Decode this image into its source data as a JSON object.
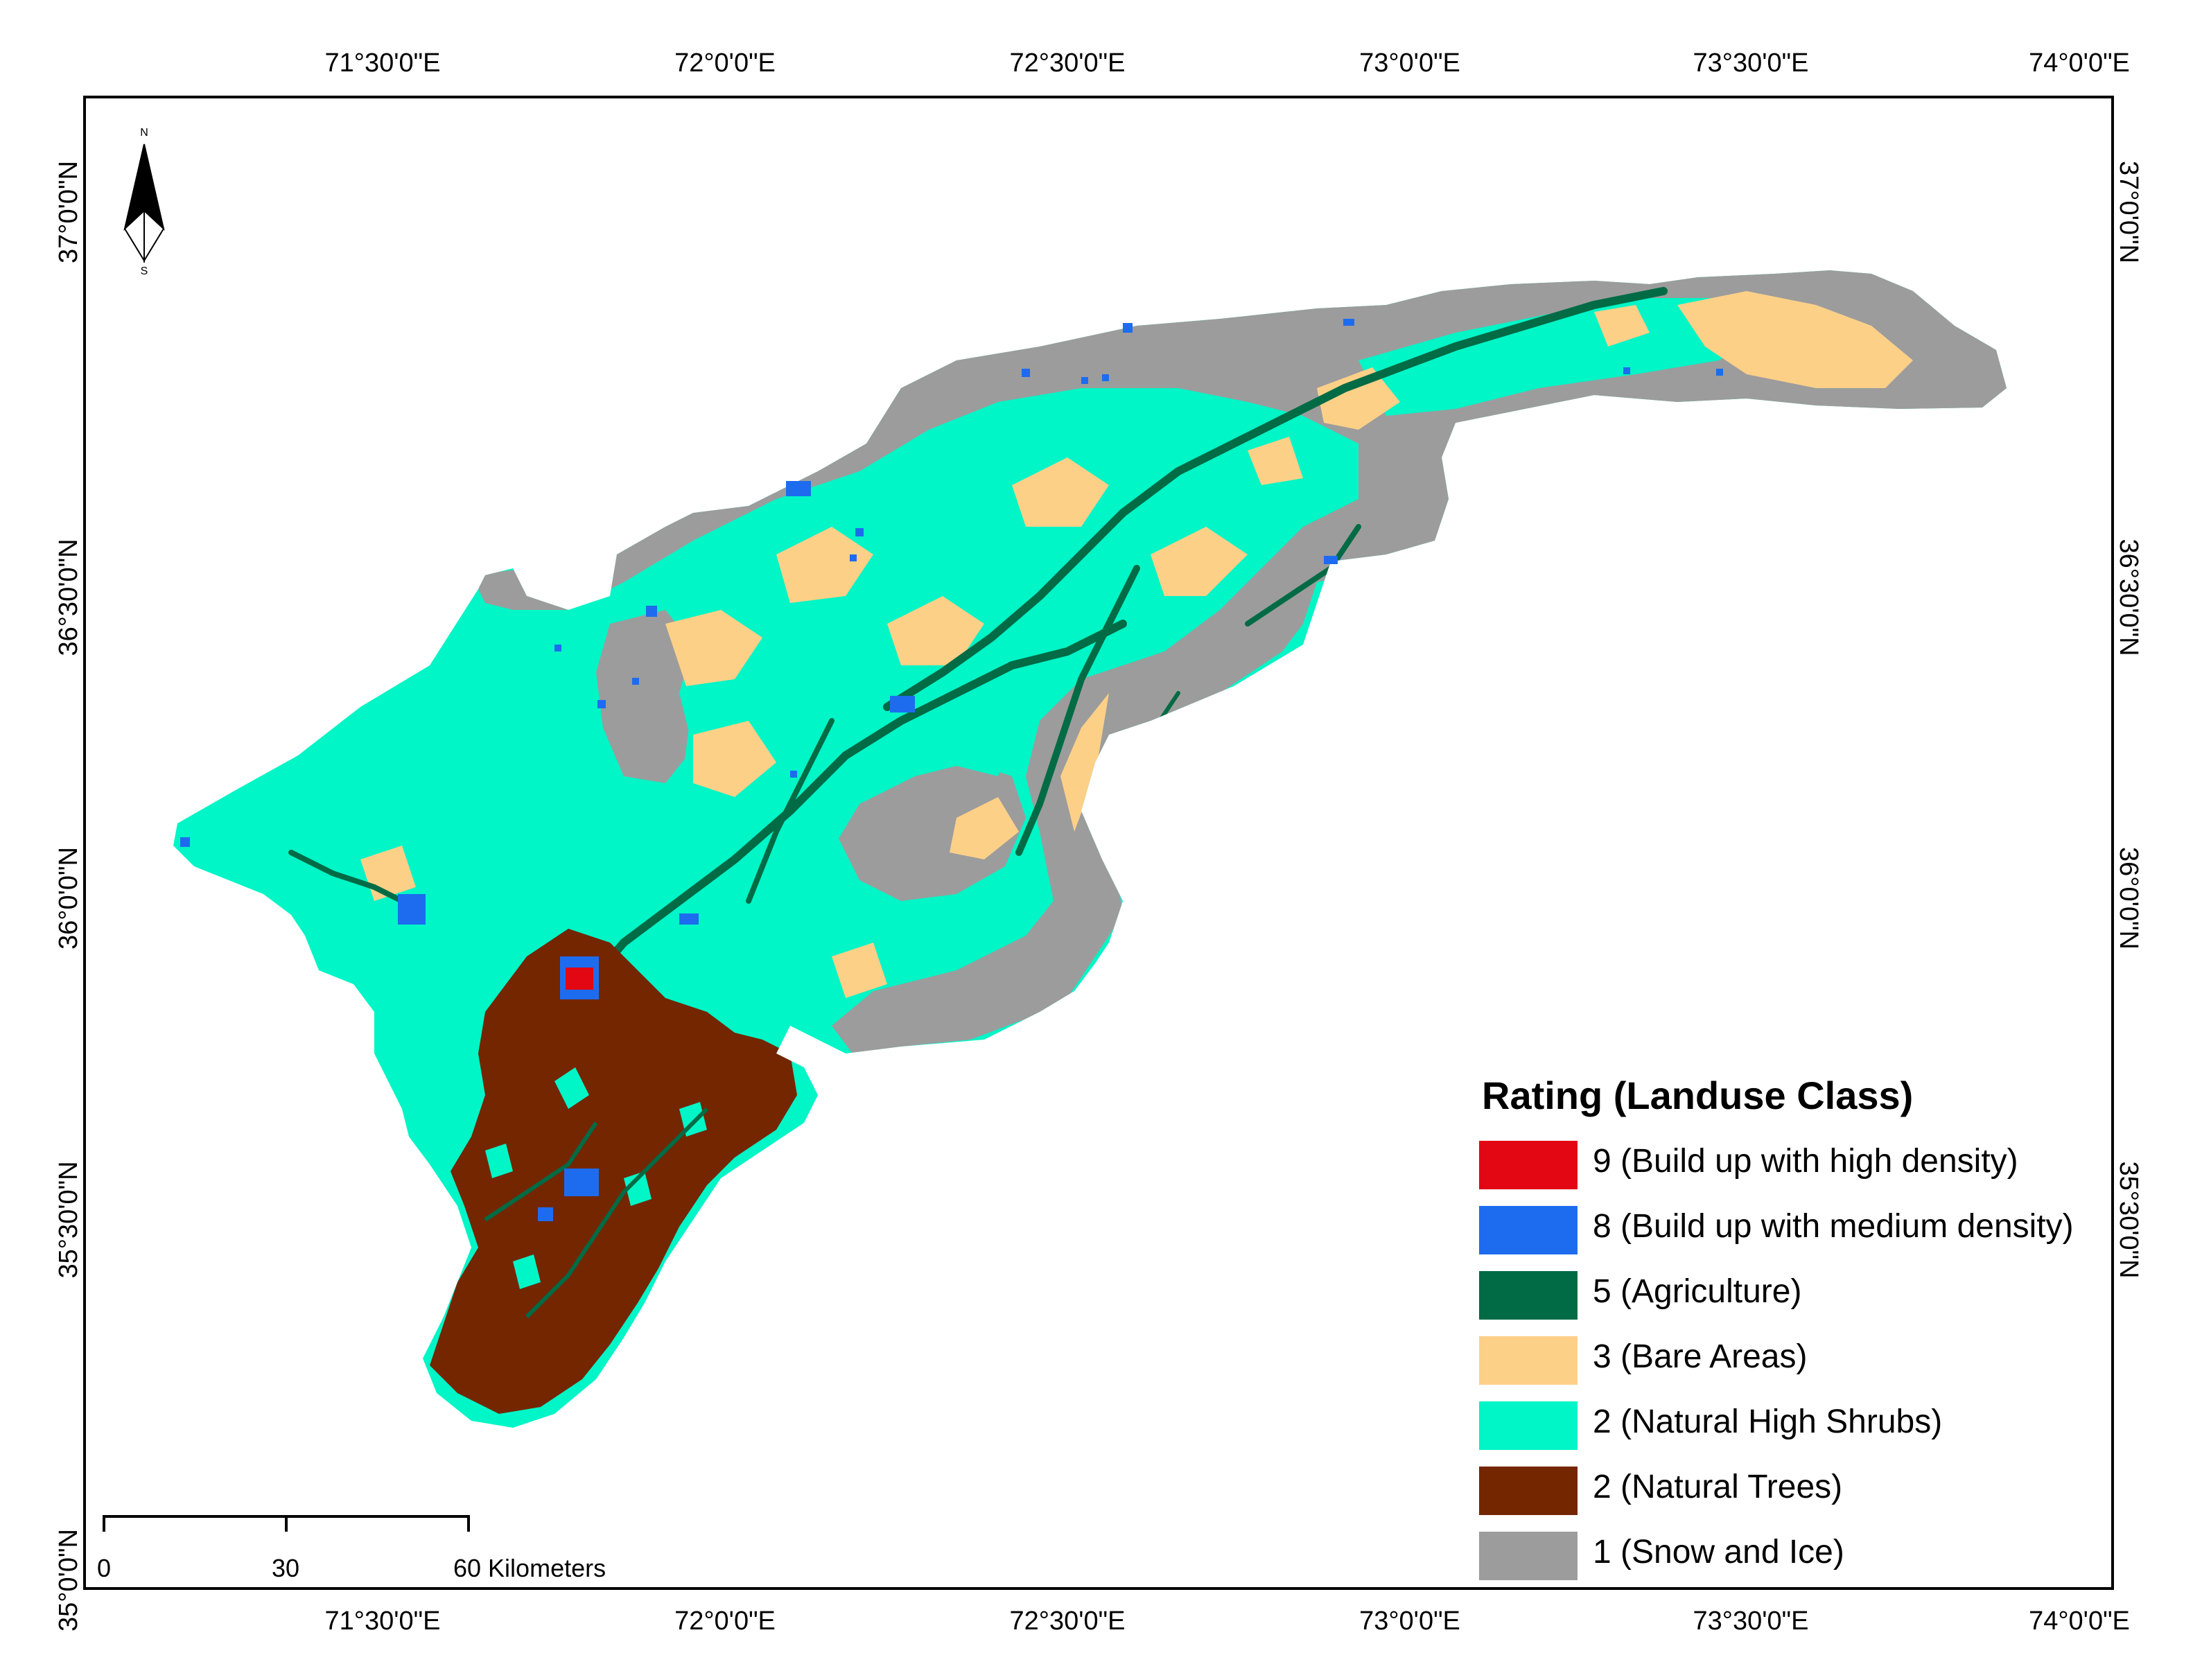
{
  "map": {
    "colors": {
      "builtup_high": "#e30613",
      "builtup_medium": "#1d6cf0",
      "agriculture": "#006b45",
      "bare": "#fdd088",
      "shrubs": "#00f5c7",
      "trees": "#732600",
      "snow": "#9c9c9c"
    }
  },
  "axes": {
    "top": [
      "71°30'0\"E",
      "72°0'0\"E",
      "72°30'0\"E",
      "73°0'0\"E",
      "73°30'0\"E",
      "74°0'0\"E"
    ],
    "bottom": [
      "71°30'0\"E",
      "72°0'0\"E",
      "72°30'0\"E",
      "73°0'0\"E",
      "73°30'0\"E",
      "74°0'0\"E"
    ],
    "left": [
      "37°0'0\"N",
      "36°30'0\"N",
      "36°0'0\"N",
      "35°30'0\"N",
      "35°0'0\"N"
    ],
    "right": [
      "37°0'0\"N",
      "36°30'0\"N",
      "36°0'0\"N",
      "35°30'0\"N"
    ]
  },
  "north_arrow": {
    "n": "N",
    "s": "S",
    "icon": "north-arrow-icon"
  },
  "legend": {
    "title": "Rating (Landuse Class)",
    "items": [
      {
        "label": "9 (Build up with high density)",
        "color": "#e30613"
      },
      {
        "label": "8 (Build up with medium density)",
        "color": "#1d6cf0"
      },
      {
        "label": "5 (Agriculture)",
        "color": "#006b45"
      },
      {
        "label": "3 (Bare Areas)",
        "color": "#fdd088"
      },
      {
        "label": "2 (Natural High Shrubs)",
        "color": "#00f5c7"
      },
      {
        "label": "2 (Natural Trees)",
        "color": "#732600"
      },
      {
        "label": "1 (Snow and Ice)",
        "color": "#9c9c9c"
      }
    ]
  },
  "scale": {
    "labels": [
      "0",
      "30",
      "60 Kilometers"
    ]
  }
}
